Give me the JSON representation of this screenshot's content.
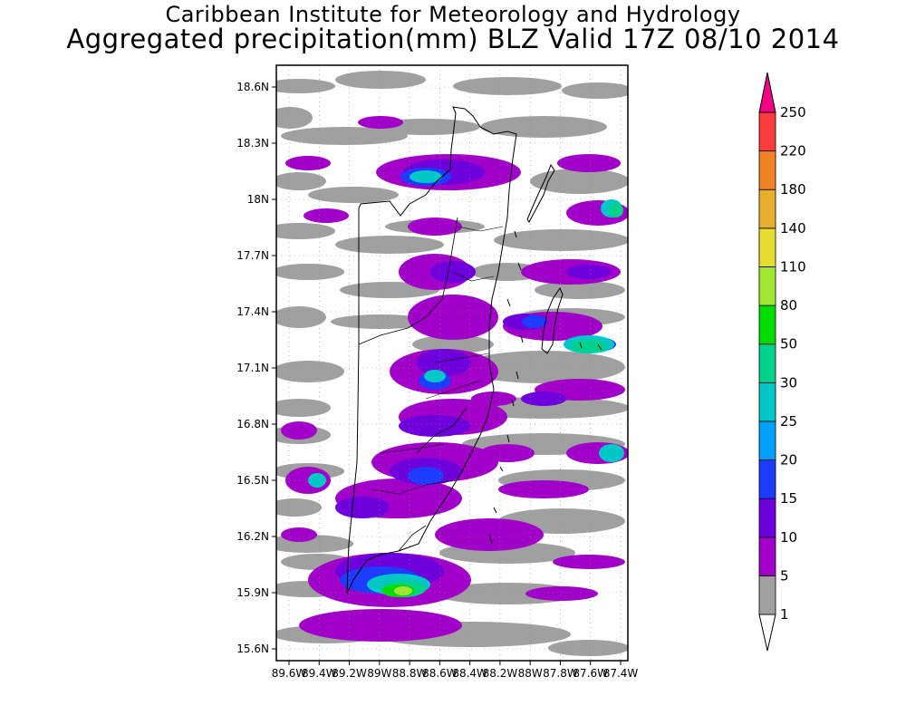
{
  "title": {
    "line1": "Caribbean Institute for Meteorology and Hydrology",
    "line2": "Aggregated precipitation(mm) BLZ Valid 17Z 08/10 2014"
  },
  "map": {
    "lat_labels": [
      "18.6N",
      "18.3N",
      "18N",
      "17.7N",
      "17.4N",
      "17.1N",
      "16.8N",
      "16.5N",
      "16.2N",
      "15.9N",
      "15.6N"
    ],
    "lon_labels": [
      "89.6W",
      "89.4W",
      "89.2W",
      "89W",
      "88.8W",
      "88.6W",
      "88.4W",
      "88.2W",
      "88W",
      "87.8W",
      "87.6W",
      "87.4W"
    ]
  },
  "colorbar": {
    "levels": [
      "1",
      "5",
      "10",
      "15",
      "20",
      "25",
      "30",
      "50",
      "80",
      "110",
      "140",
      "180",
      "220",
      "250"
    ],
    "colors": [
      "#a0a0a0",
      "#a000c8",
      "#6e00dc",
      "#1e3cff",
      "#00a0ff",
      "#00c8c8",
      "#00d28c",
      "#00dc00",
      "#a0e632",
      "#e6dc32",
      "#e6af2d",
      "#f08228",
      "#fa3c3c",
      "#f00082"
    ]
  }
}
